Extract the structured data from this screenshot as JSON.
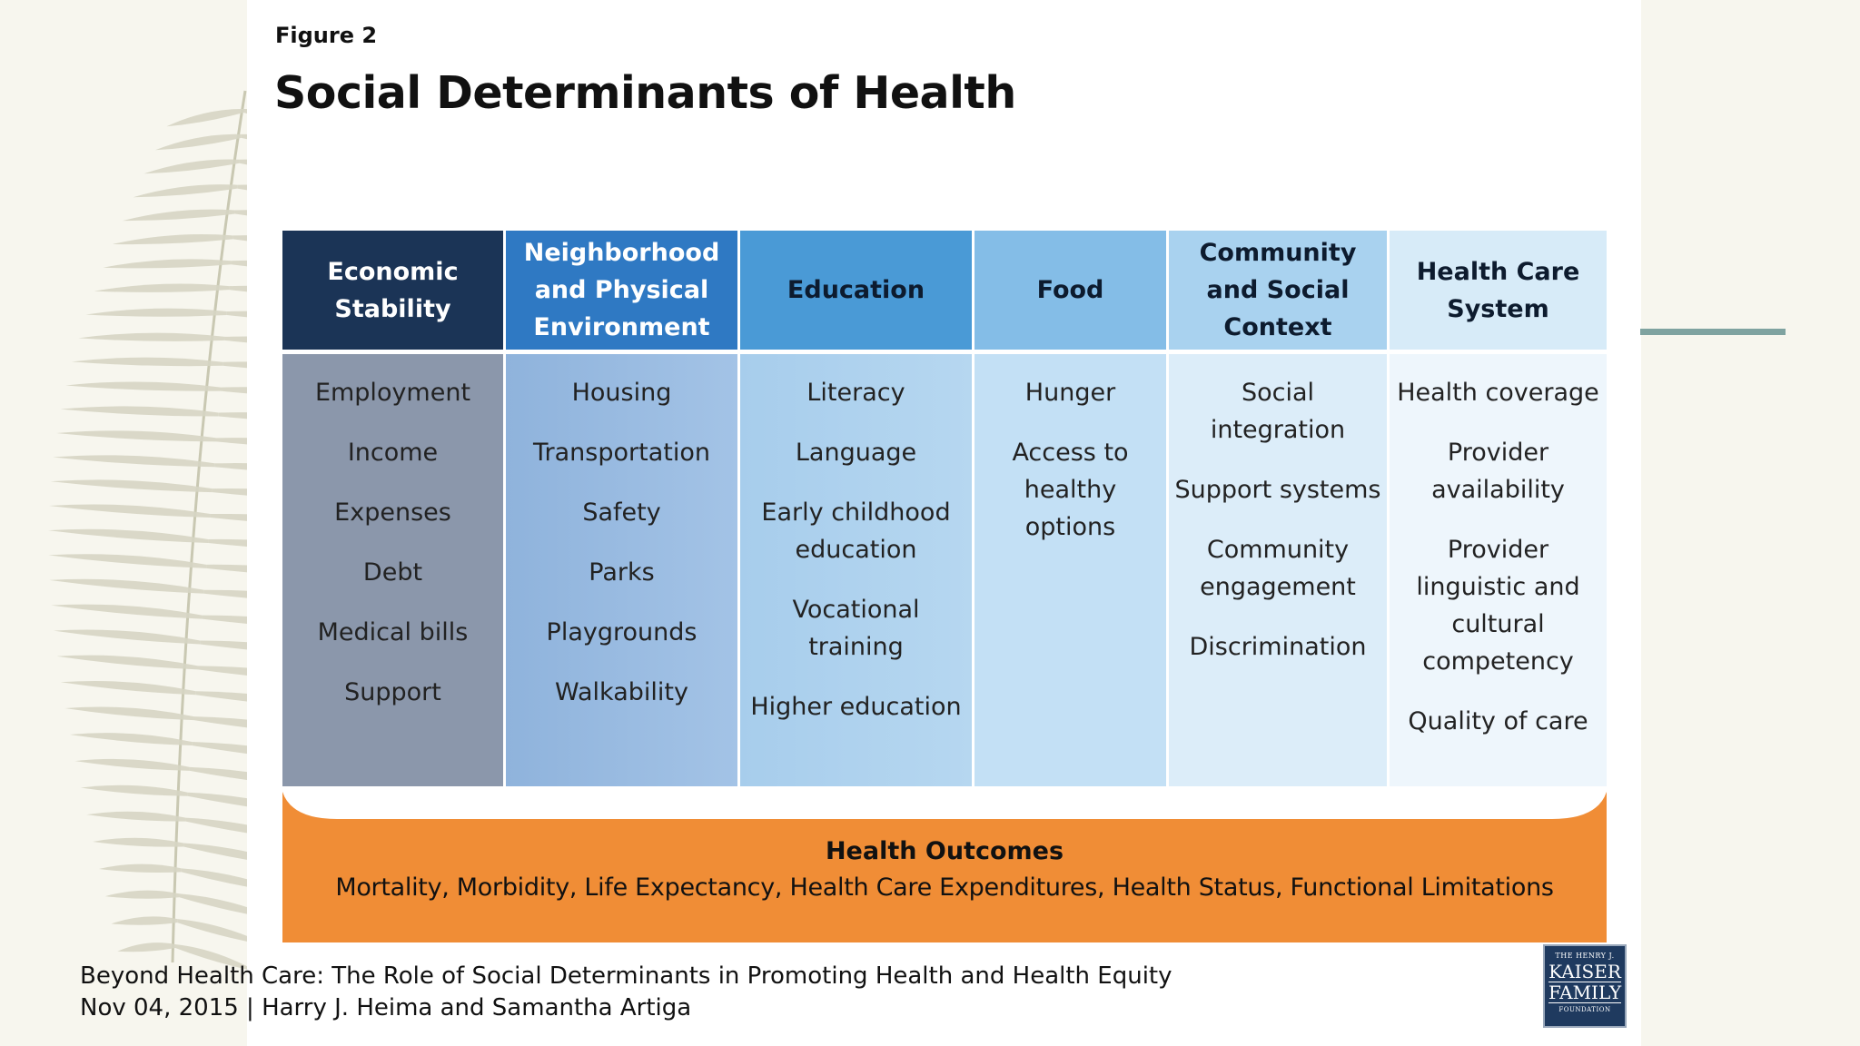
{
  "header": {
    "figure_label": "Figure 2",
    "title": "Social Determinants of Health"
  },
  "columns": [
    {
      "header": "Economic Stability",
      "items": [
        "Employment",
        "Income",
        "Expenses",
        "Debt",
        "Medical bills",
        "Support"
      ],
      "header_color": "#1b3456"
    },
    {
      "header": "Neighborhood and Physical Environment",
      "items": [
        "Housing",
        "Transportation",
        "Safety",
        "Parks",
        "Playgrounds",
        "Walkability"
      ],
      "header_color": "#2f79c3"
    },
    {
      "header": "Education",
      "items": [
        "Literacy",
        "Language",
        "Early childhood education",
        "Vocational training",
        "Higher education"
      ],
      "header_color": "#4a9ad6"
    },
    {
      "header": "Food",
      "items": [
        "Hunger",
        "Access to healthy options"
      ],
      "header_color": "#84bde7"
    },
    {
      "header": "Community and Social Context",
      "items": [
        "Social integration",
        "Support systems",
        "Community engagement",
        "Discrimination"
      ],
      "header_color": "#a9d2ef"
    },
    {
      "header": "Health Care System",
      "items": [
        "Health coverage",
        "Provider availability",
        "Provider linguistic and cultural competency",
        "Quality of care"
      ],
      "header_color": "#d7ebf8"
    }
  ],
  "outcomes": {
    "title": "Health Outcomes",
    "list": "Mortality, Morbidity, Life Expectancy, Health Care Expenditures, Health Status, Functional Limitations",
    "color": "#f08d36"
  },
  "citation": {
    "line1": "Beyond Health Care: The Role of Social Determinants in Promoting Health and Health Equity",
    "line2": "Nov 04, 2015 | Harry J. Heima and Samantha Artiga"
  },
  "logo": {
    "line1": "THE HENRY J.",
    "line2": "KAISER",
    "line3": "FAMILY",
    "line4": "FOUNDATION"
  }
}
